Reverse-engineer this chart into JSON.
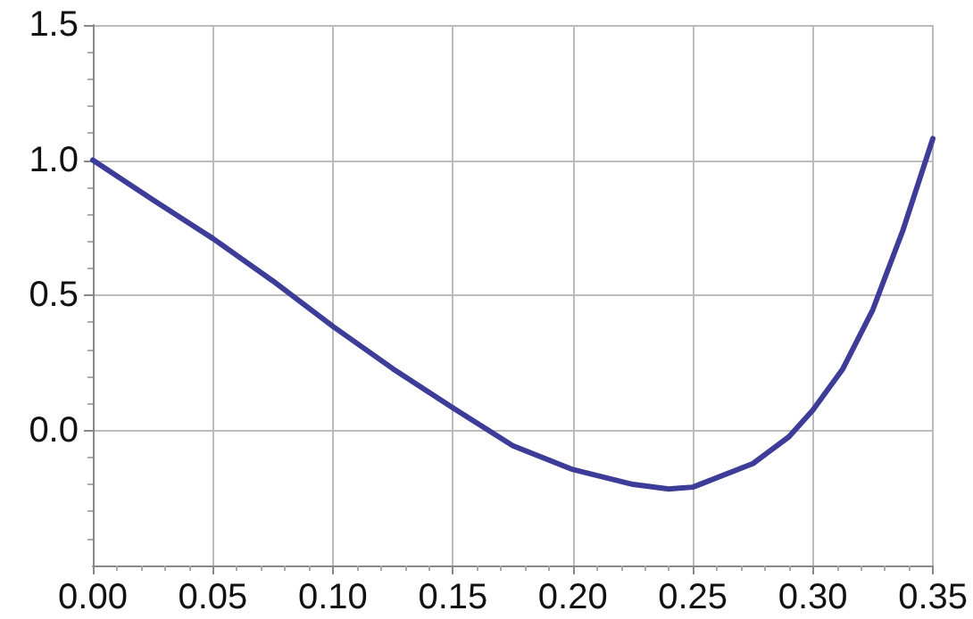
{
  "chart_data": {
    "type": "line",
    "x": [
      0,
      0.025,
      0.05,
      0.075,
      0.1,
      0.125,
      0.15,
      0.175,
      0.2,
      0.225,
      0.24,
      0.25,
      0.275,
      0.29,
      0.3,
      0.3125,
      0.325,
      0.3375,
      0.35
    ],
    "series": [
      {
        "color": "#3d3d99",
        "values": [
          1.0,
          0.853,
          0.71,
          0.553,
          0.385,
          0.228,
          0.083,
          -0.057,
          -0.145,
          -0.2,
          -0.217,
          -0.21,
          -0.123,
          -0.024,
          0.075,
          0.228,
          0.447,
          0.74,
          1.08
        ]
      }
    ],
    "xlim": [
      0,
      0.35
    ],
    "xticks": [
      {
        "value": 0,
        "label": "0.00"
      },
      {
        "value": 0.05,
        "label": "0.05"
      },
      {
        "value": 0.1,
        "label": "0.10"
      },
      {
        "value": 0.15,
        "label": "0.15"
      },
      {
        "value": 0.2,
        "label": "0.20"
      },
      {
        "value": 0.25,
        "label": "0.25"
      },
      {
        "value": 0.3,
        "label": "0.30"
      },
      {
        "value": 0.35,
        "label": "0.35"
      }
    ],
    "ylim": [
      -0.5,
      1.5
    ],
    "yticks": [
      {
        "value": 0,
        "label": "0.0"
      },
      {
        "value": 0.5,
        "label": "0.5"
      },
      {
        "value": 1,
        "label": "1.0"
      },
      {
        "value": 1.5,
        "label": "1.5"
      }
    ],
    "grid": true,
    "marker": "none",
    "line_style": "solid"
  }
}
